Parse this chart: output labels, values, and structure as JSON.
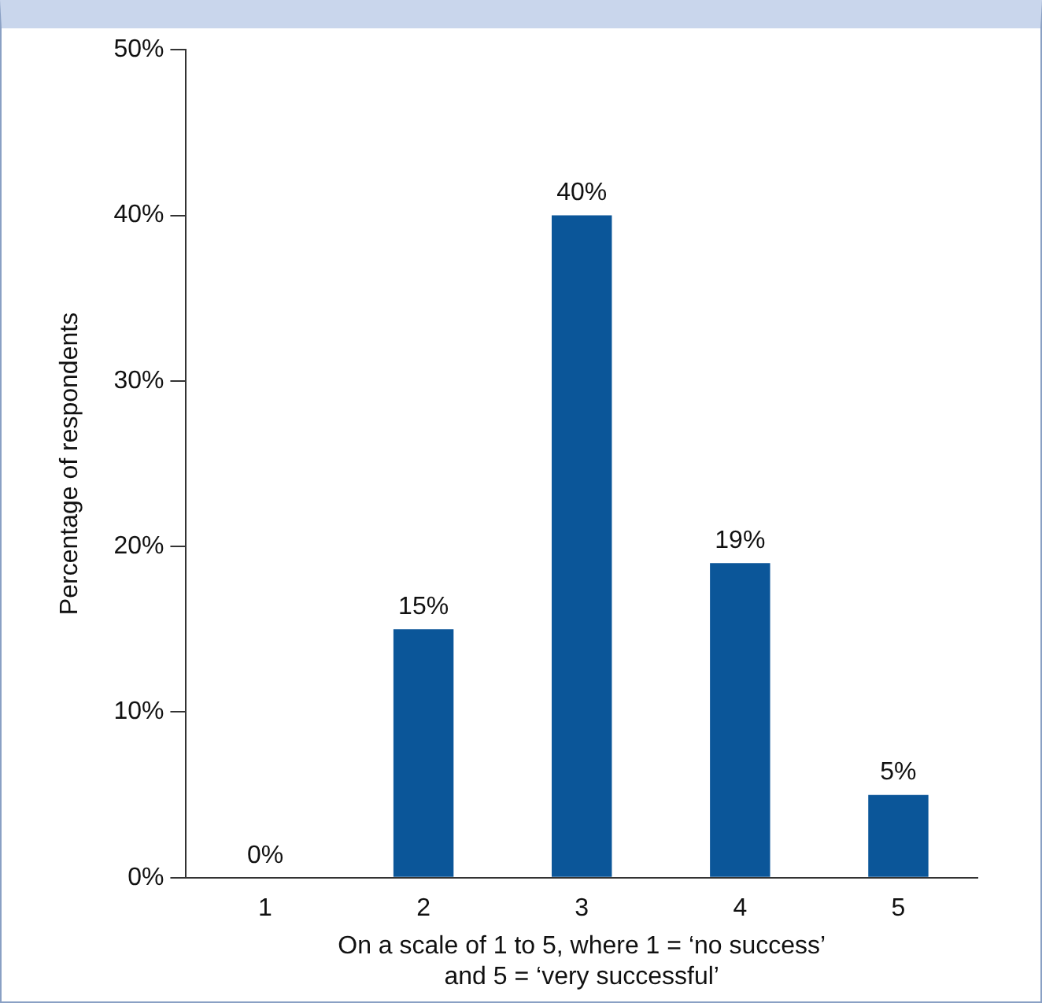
{
  "chart_data": {
    "type": "bar",
    "xlabel": "On a scale of 1 to 5, where 1 = ‘no success’\nand 5 = ‘very successful’",
    "ylabel": "Percentage of respondents",
    "categories": [
      "1",
      "2",
      "3",
      "4",
      "5"
    ],
    "values": [
      0,
      15,
      40,
      19,
      5
    ],
    "value_labels": [
      "0%",
      "15%",
      "40%",
      "19%",
      "5%"
    ],
    "color": "#0b5699",
    "ylim": [
      0,
      50
    ],
    "yticks": [
      {
        "value": 0,
        "label": "0%"
      },
      {
        "value": 10,
        "label": "10%"
      },
      {
        "value": 20,
        "label": "20%"
      },
      {
        "value": 30,
        "label": "30%"
      },
      {
        "value": 40,
        "label": "40%"
      },
      {
        "value": 50,
        "label": "50%"
      }
    ],
    "grid": false,
    "legend": false
  }
}
